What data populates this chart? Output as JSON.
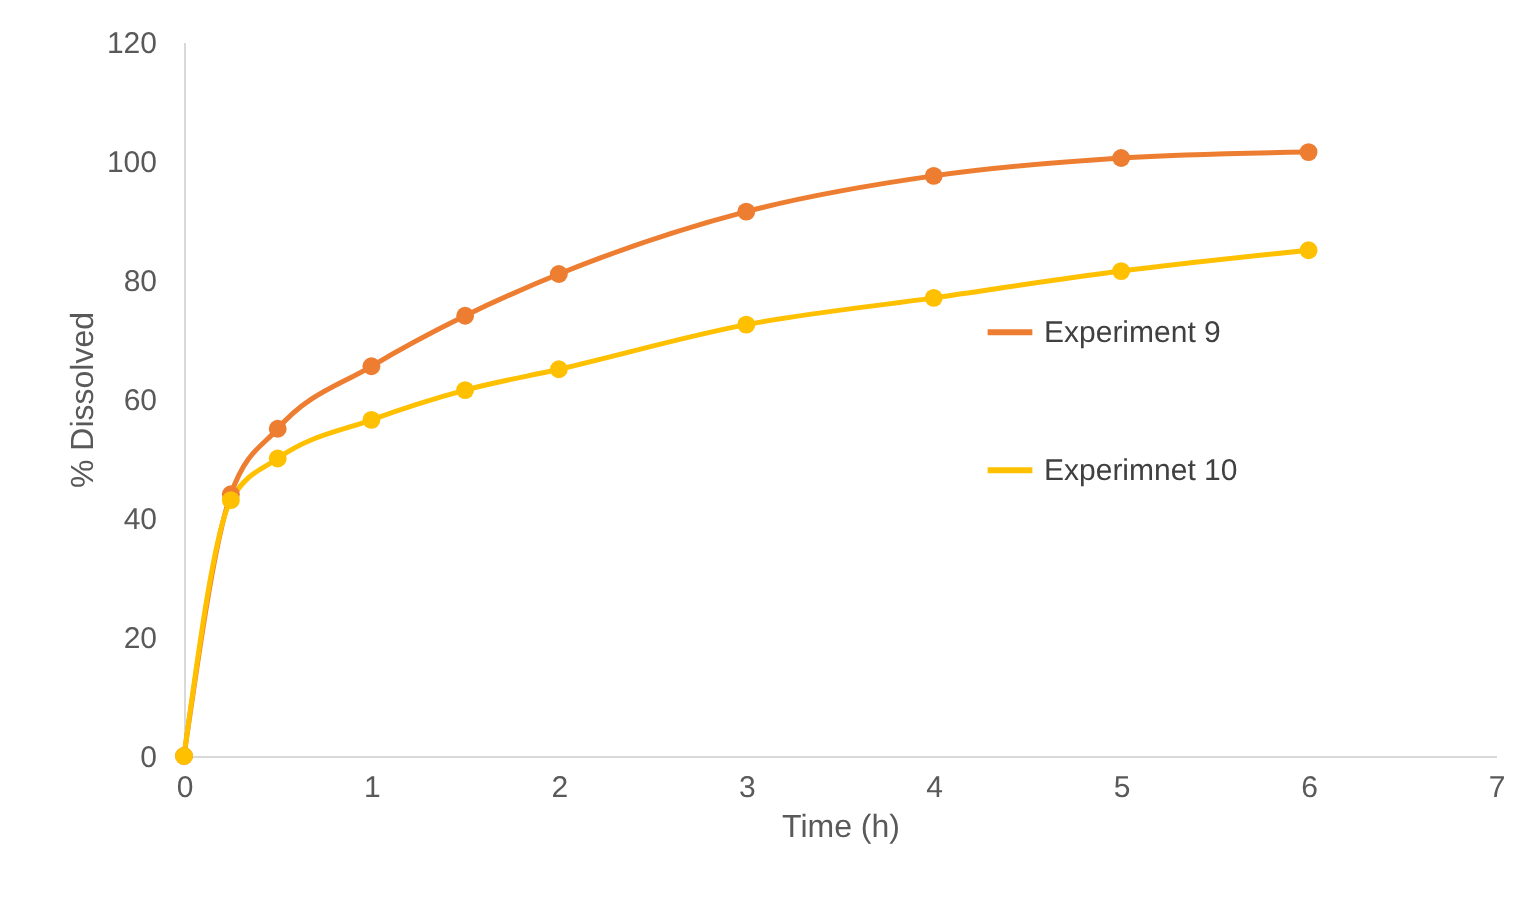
{
  "chart_data": {
    "type": "line",
    "xlabel": "Time (h)",
    "ylabel": "% Dissolved",
    "xlim": [
      0,
      7
    ],
    "xticks": [
      0,
      1,
      2,
      3,
      4,
      5,
      6,
      7
    ],
    "ylim": [
      0,
      120
    ],
    "yticks": [
      0,
      20,
      40,
      60,
      80,
      100,
      120
    ],
    "x": [
      0,
      0.25,
      0.5,
      1,
      1.5,
      2,
      3,
      4,
      5,
      6
    ],
    "series": [
      {
        "name": "Experiment 9",
        "color": "#ed7d31",
        "values": [
          0,
          44,
          55,
          65.5,
          74,
          81,
          91.5,
          97.5,
          100.5,
          101.5
        ]
      },
      {
        "name": "Experimnet 10",
        "color": "#ffc000",
        "values": [
          0,
          43,
          50,
          56.5,
          61.5,
          65,
          72.5,
          77,
          81.5,
          85
        ]
      }
    ],
    "marker": "circle",
    "line_style": "solid",
    "legend": "right",
    "grid": false
  }
}
